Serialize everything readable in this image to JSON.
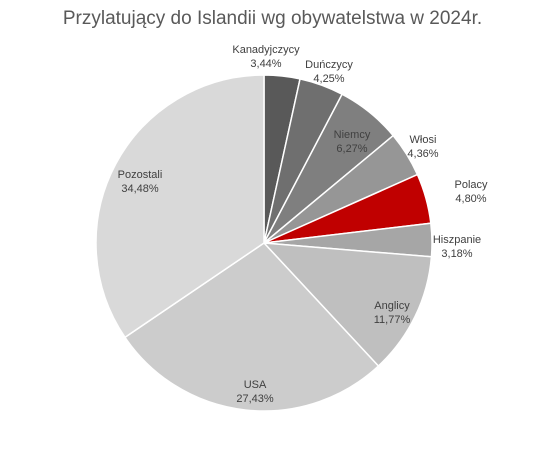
{
  "chart_data": {
    "type": "pie",
    "title": "Przylatujący do Islandii wg obywatelstwa w 2024r.",
    "slices": [
      {
        "label": "Kanadyjczycy",
        "value": 3.44,
        "display": "3,44%",
        "color": "#595959"
      },
      {
        "label": "Duńczycy",
        "value": 4.25,
        "display": "4,25%",
        "color": "#6f6f6f"
      },
      {
        "label": "Niemcy",
        "value": 6.27,
        "display": "6,27%",
        "color": "#7f7f7f"
      },
      {
        "label": "Włosi",
        "value": 4.36,
        "display": "4,36%",
        "color": "#969696"
      },
      {
        "label": "Polacy",
        "value": 4.8,
        "display": "4,80%",
        "color": "#c00000"
      },
      {
        "label": "Hiszpanie",
        "value": 3.18,
        "display": "3,18%",
        "color": "#a6a6a6"
      },
      {
        "label": "Anglicy",
        "value": 11.77,
        "display": "11,77%",
        "color": "#bfbfbf"
      },
      {
        "label": "USA",
        "value": 27.43,
        "display": "27,43%",
        "color": "#cccccc"
      },
      {
        "label": "Pozostali",
        "value": 34.48,
        "display": "34,48%",
        "color": "#d9d9d9"
      }
    ],
    "label_placement": "inside-outer",
    "start": "top, clockwise"
  }
}
